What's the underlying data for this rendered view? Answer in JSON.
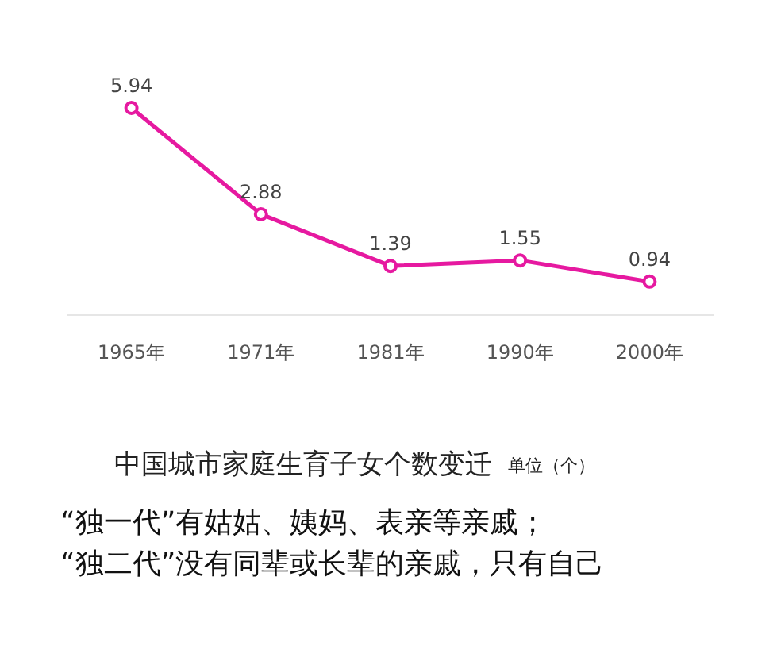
{
  "chart_data": {
    "type": "line",
    "title": "中国城市家庭生育子女个数变迁",
    "subtitle": "单位（个）",
    "categories": [
      "1965年",
      "1971年",
      "1981年",
      "1990年",
      "2000年"
    ],
    "series": [
      {
        "color": "#e619a0",
        "values": [
          5.94,
          2.88,
          1.39,
          1.55,
          0.94
        ]
      }
    ],
    "data_labels": true,
    "marker": "circle",
    "annotations": [
      "“独一代”有姑姑、姨妈、表亲等亲戚；",
      "“独二代”没有同辈或长辈的亲戚，只有自己"
    ]
  }
}
